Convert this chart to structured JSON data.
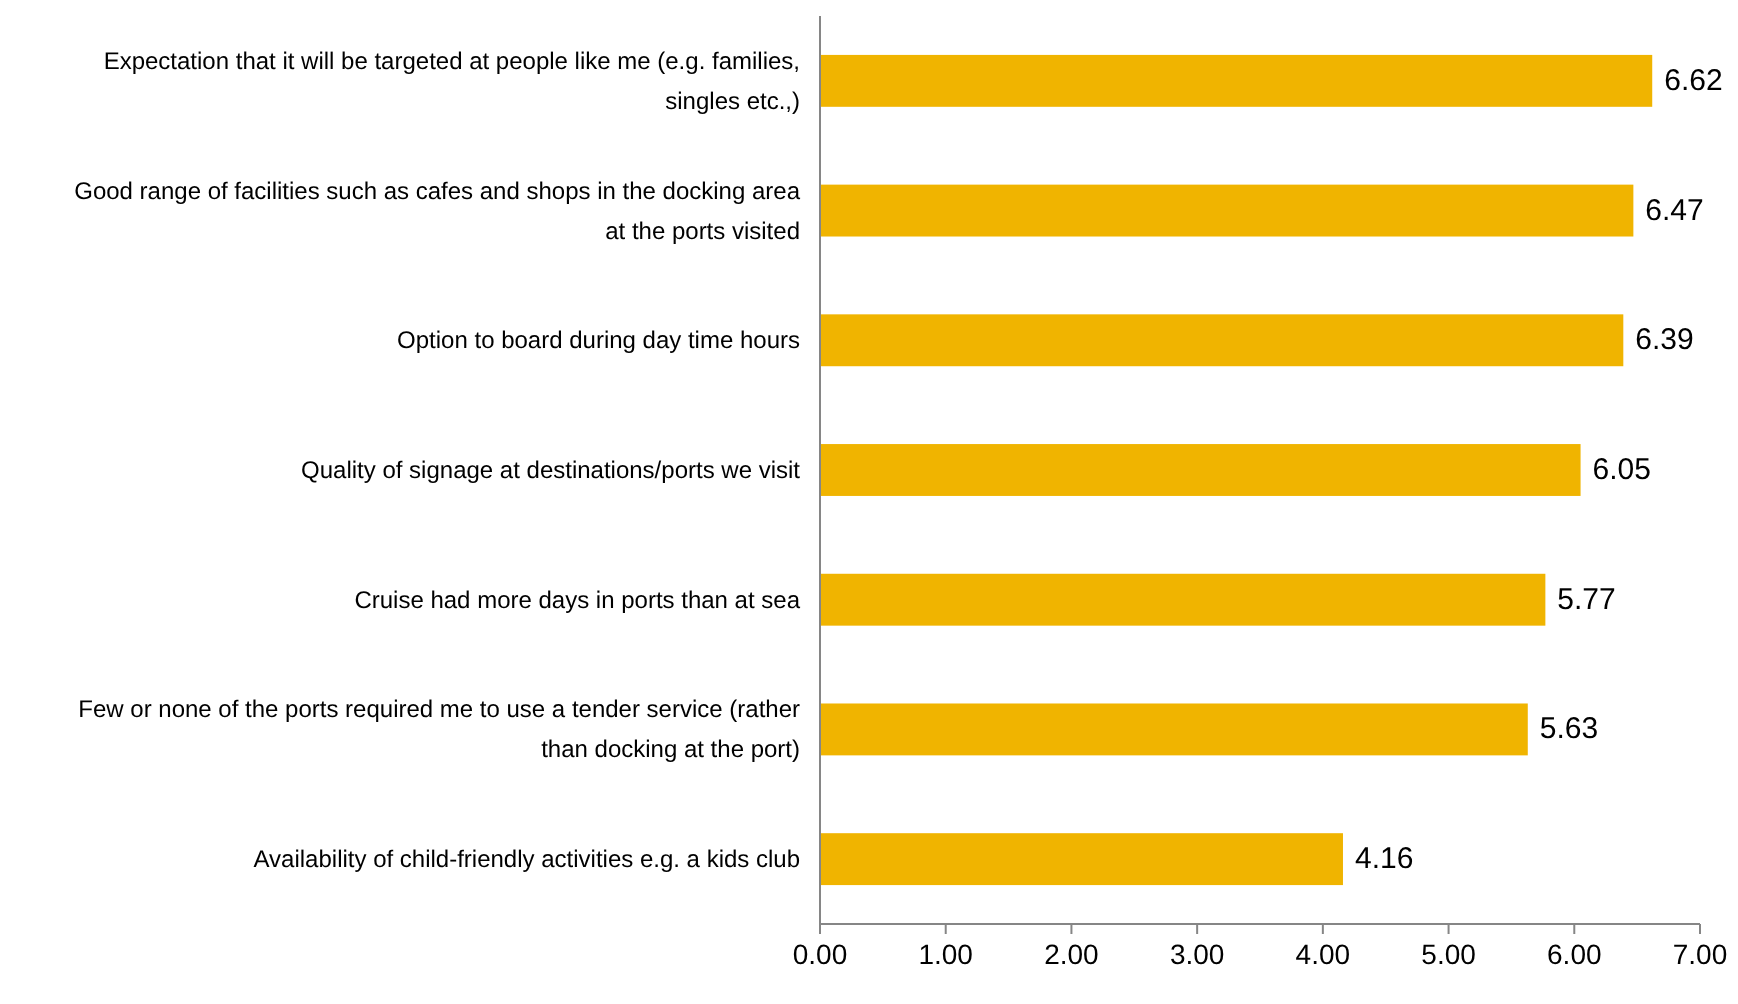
{
  "chart_data": {
    "type": "bar",
    "orientation": "horizontal",
    "categories": [
      "Expectation that it will be targeted at people like me (e.g. families, singles etc.,)",
      "Good range of facilities such as cafes and shops in the docking area at the ports visited",
      "Option to board during day time hours",
      "Quality of signage at destinations/ports we visit",
      "Cruise had more days in ports than at sea",
      "Few or none of the ports required me to use a tender service (rather than docking at the port)",
      "Availability of child-friendly activities e.g. a kids club"
    ],
    "values": [
      6.62,
      6.47,
      6.39,
      6.05,
      5.77,
      5.63,
      4.16
    ],
    "color": "#f0b400",
    "xlim": [
      0,
      7
    ],
    "xticks": [
      {
        "value": 0,
        "label": "0.00"
      },
      {
        "value": 1,
        "label": "1.00"
      },
      {
        "value": 2,
        "label": "2.00"
      },
      {
        "value": 3,
        "label": "3.00"
      },
      {
        "value": 4,
        "label": "4.00"
      },
      {
        "value": 5,
        "label": "5.00"
      },
      {
        "value": 6,
        "label": "6.00"
      },
      {
        "value": 7,
        "label": "7.00"
      }
    ],
    "data_labels": true
  }
}
